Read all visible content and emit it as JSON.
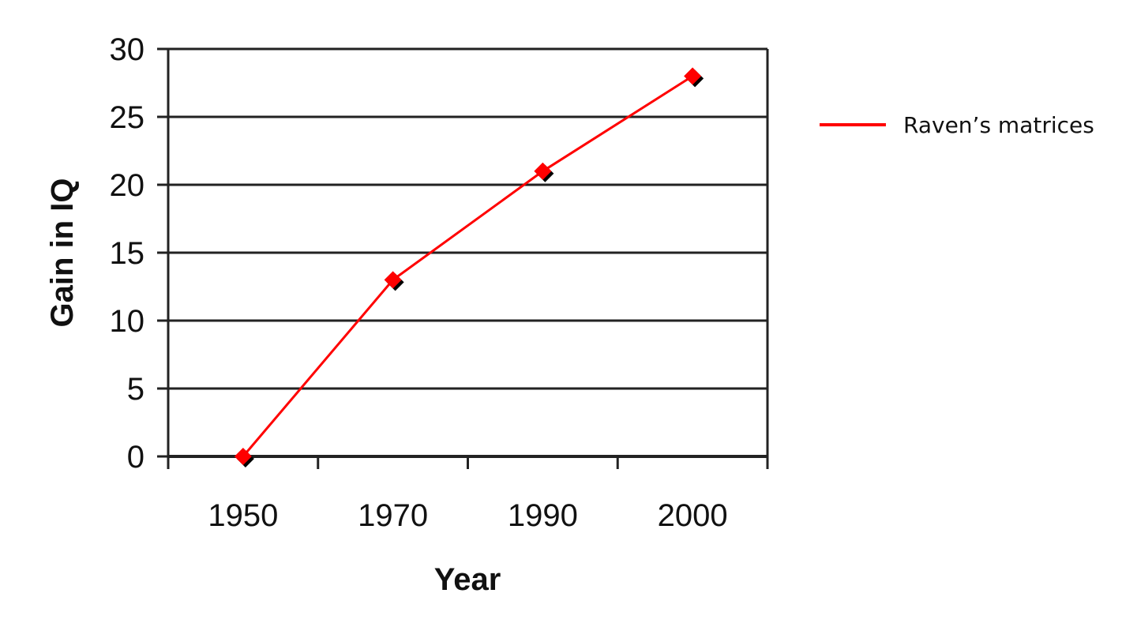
{
  "chart_data": {
    "type": "line",
    "categories": [
      "1950",
      "1970",
      "1990",
      "2000"
    ],
    "series": [
      {
        "name": "Raven’s matrices",
        "values": [
          0,
          13,
          21,
          28
        ],
        "color": "#ff0000"
      }
    ],
    "title": "",
    "xlabel": "Year",
    "ylabel": "Gain in IQ",
    "ylim": [
      0,
      30
    ],
    "yticks": [
      "0",
      "5",
      "10",
      "15",
      "20",
      "25",
      "30"
    ],
    "grid": true,
    "legend": "right",
    "marker": "diamond",
    "marker_shadow_color": "#000000"
  }
}
